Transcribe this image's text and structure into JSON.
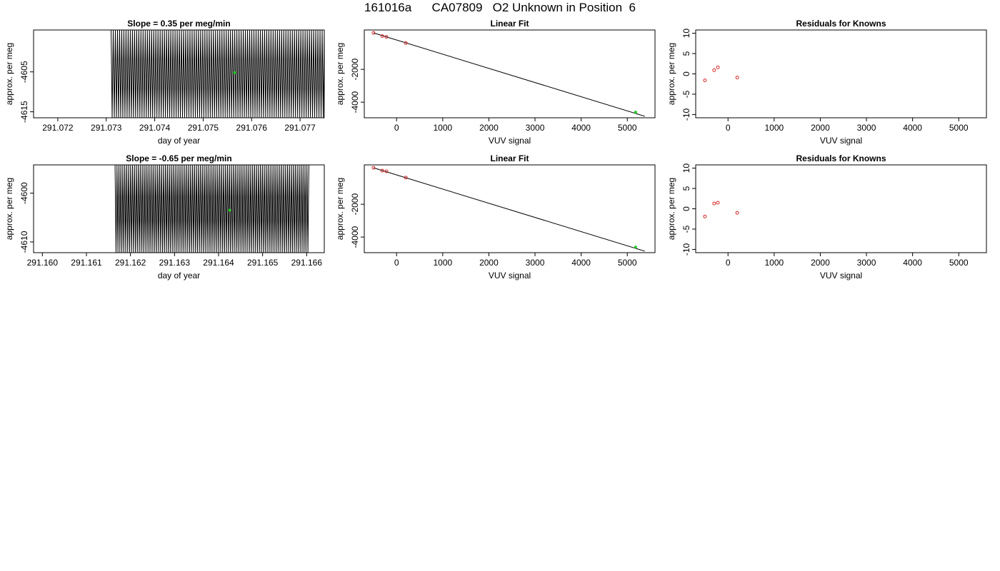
{
  "title": "161016a      CA07809   O2 Unknown in Position  6",
  "colors": {
    "known_points": "#d62728",
    "unknown_point": "#22cc22",
    "line": "#000000"
  },
  "chart_data": [
    {
      "type": "line",
      "title": "Slope =  0.35  per meg/min",
      "xlabel": "day of year",
      "ylabel": "approx. per meg",
      "xlim": [
        291.0715,
        291.0775
      ],
      "ylim": [
        -4616.5,
        -4594.5
      ],
      "xticks": [
        291.072,
        291.073,
        291.074,
        291.075,
        291.076,
        291.077
      ],
      "xtick_labels": [
        "291.072",
        "291.073",
        "291.074",
        "291.075",
        "291.076",
        "291.077"
      ],
      "yticks": [
        -4615,
        -4605
      ],
      "ytick_labels": [
        "-4615",
        "-4605"
      ],
      "signal": {
        "x_start": 291.0731,
        "x_end": 291.0775,
        "cycles": 100,
        "high": -4594.5,
        "low": -4616.5
      },
      "highlight": {
        "x": 291.07565,
        "y": -4605.2
      }
    },
    {
      "type": "scatter",
      "title": "Linear Fit",
      "xlabel": "VUV signal",
      "ylabel": "approx. per meg",
      "xlim": [
        -700,
        5600
      ],
      "ylim": [
        -4950,
        400
      ],
      "xticks": [
        0,
        1000,
        2000,
        3000,
        4000,
        5000
      ],
      "xtick_labels": [
        "0",
        "1000",
        "2000",
        "3000",
        "4000",
        "5000"
      ],
      "yticks": [
        -4000,
        -2000
      ],
      "ytick_labels": [
        "-4000",
        "-2000"
      ],
      "knowns": [
        [
          -500,
          220
        ],
        [
          -310,
          25
        ],
        [
          -220,
          -20
        ],
        [
          200,
          -400
        ]
      ],
      "unknown": [
        5180,
        -4605
      ],
      "fit_line": [
        [
          -500,
          220
        ],
        [
          5380,
          -4860
        ]
      ]
    },
    {
      "type": "scatter",
      "title": "Residuals for Knowns",
      "xlabel": "VUV signal",
      "ylabel": "approx. per meg",
      "xlim": [
        -700,
        5600
      ],
      "ylim": [
        -10.8,
        10.8
      ],
      "xticks": [
        0,
        1000,
        2000,
        3000,
        4000,
        5000
      ],
      "xtick_labels": [
        "0",
        "1000",
        "2000",
        "3000",
        "4000",
        "5000"
      ],
      "yticks": [
        -10,
        -5,
        0,
        5,
        10
      ],
      "ytick_labels": [
        "-10",
        "-5",
        "0",
        "5",
        "10"
      ],
      "knowns": [
        [
          -500,
          -1.6
        ],
        [
          -300,
          0.9
        ],
        [
          -220,
          1.6
        ],
        [
          200,
          -0.9
        ]
      ]
    },
    {
      "type": "line",
      "title": "Slope =  -0.65  per meg/min",
      "xlabel": "day of year",
      "ylabel": "approx. per meg",
      "xlim": [
        291.1598,
        291.1664
      ],
      "ylim": [
        -4612.2,
        -4594.2
      ],
      "xticks": [
        291.16,
        291.161,
        291.162,
        291.163,
        291.164,
        291.165,
        291.166
      ],
      "xtick_labels": [
        "291.160",
        "291.161",
        "291.162",
        "291.163",
        "291.164",
        "291.165",
        "291.166"
      ],
      "yticks": [
        -4610,
        -4600
      ],
      "ytick_labels": [
        "-4610",
        "-4600"
      ],
      "signal": {
        "x_start": 291.16165,
        "x_end": 291.16605,
        "cycles": 100,
        "high": -4594.2,
        "low": -4612.2
      },
      "highlight": {
        "x": 291.16425,
        "y": -4603.5
      }
    },
    {
      "type": "scatter",
      "title": "Linear Fit",
      "xlabel": "VUV signal",
      "ylabel": "approx. per meg",
      "xlim": [
        -700,
        5600
      ],
      "ylim": [
        -4950,
        400
      ],
      "xticks": [
        0,
        1000,
        2000,
        3000,
        4000,
        5000
      ],
      "xtick_labels": [
        "0",
        "1000",
        "2000",
        "3000",
        "4000",
        "5000"
      ],
      "yticks": [
        -4000,
        -2000
      ],
      "ytick_labels": [
        "-4000",
        "-2000"
      ],
      "knowns": [
        [
          -500,
          220
        ],
        [
          -310,
          50
        ],
        [
          -220,
          10
        ],
        [
          200,
          -375
        ]
      ],
      "unknown": [
        5180,
        -4605
      ],
      "fit_line": [
        [
          -500,
          220
        ],
        [
          5380,
          -4860
        ]
      ]
    },
    {
      "type": "scatter",
      "title": "Residuals for Knowns",
      "xlabel": "VUV signal",
      "ylabel": "approx. per meg",
      "xlim": [
        -700,
        5600
      ],
      "ylim": [
        -10.8,
        10.8
      ],
      "xticks": [
        0,
        1000,
        2000,
        3000,
        4000,
        5000
      ],
      "xtick_labels": [
        "0",
        "1000",
        "2000",
        "3000",
        "4000",
        "5000"
      ],
      "yticks": [
        -10,
        -5,
        0,
        5,
        10
      ],
      "ytick_labels": [
        "-10",
        "-5",
        "0",
        "5",
        "10"
      ],
      "knowns": [
        [
          -500,
          -1.9
        ],
        [
          -300,
          1.3
        ],
        [
          -220,
          1.5
        ],
        [
          200,
          -1.0
        ]
      ]
    }
  ]
}
